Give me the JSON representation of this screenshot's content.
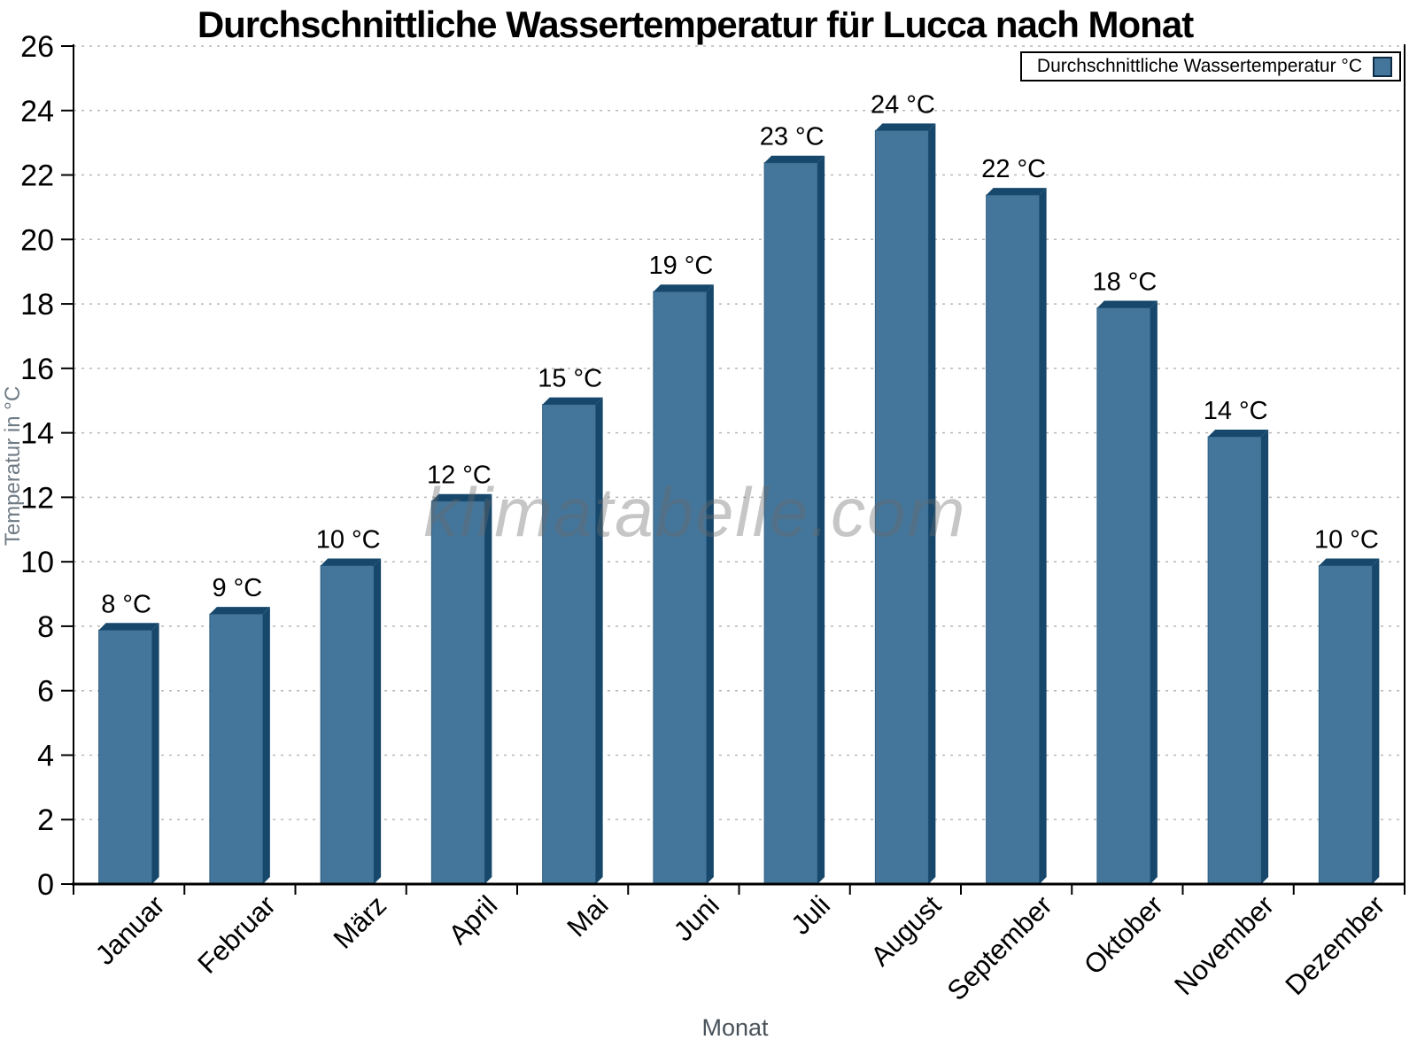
{
  "title": "Durchschnittliche Wassertemperatur für Lucca nach Monat",
  "watermark": "klimatabelle.com",
  "legend": {
    "label": "Durchschnittliche Wassertemperatur °C"
  },
  "axes": {
    "x_label": "Monat",
    "y_label": "Temperatur in °C"
  },
  "chart_data": {
    "type": "bar",
    "title": "Durchschnittliche Wassertemperatur für Lucca nach Monat",
    "xlabel": "Monat",
    "ylabel": "Temperatur in °C",
    "legend": [
      "Durchschnittliche Wassertemperatur °C"
    ],
    "legend_position": "top-right",
    "grid": "horizontal dotted gridlines every 2 °C",
    "categories": [
      "Januar",
      "Februar",
      "März",
      "April",
      "Mai",
      "Juni",
      "Juli",
      "August",
      "September",
      "Oktober",
      "November",
      "Dezember"
    ],
    "values": [
      8.1,
      8.6,
      10.1,
      12.1,
      15.1,
      18.6,
      22.6,
      23.6,
      21.6,
      18.1,
      14.1,
      10.1
    ],
    "bar_labels": [
      "8 °C",
      "9 °C",
      "10 °C",
      "12 °C",
      "15 °C",
      "19 °C",
      "23 °C",
      "24 °C",
      "22 °C",
      "18 °C",
      "14 °C",
      "10 °C"
    ],
    "ylim": [
      0,
      26
    ],
    "ytick_step": 2,
    "ytick_labels": [
      "0",
      "2",
      "4",
      "6",
      "8",
      "10",
      "12",
      "14",
      "16",
      "18",
      "20",
      "22",
      "24",
      "26"
    ],
    "bar_color": "#44769B",
    "bar_edge_color": "#17486B",
    "grid_color": "#b8b8b8",
    "axis_color": "#000000"
  }
}
